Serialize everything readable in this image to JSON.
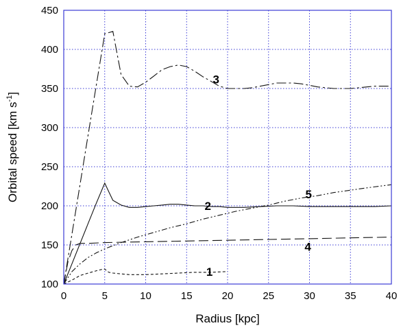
{
  "chart_data": {
    "type": "line",
    "xlabel": "Radius [kpc]",
    "ylabel": "Orbital speed [km s-1]",
    "ylabel_main": "Orbital speed [km s",
    "ylabel_sup": "-1",
    "ylabel_close": "]",
    "xlim": [
      0,
      40
    ],
    "ylim": [
      100,
      450
    ],
    "x_ticks": [
      0,
      5,
      10,
      15,
      20,
      25,
      30,
      35,
      40
    ],
    "y_ticks": [
      100,
      150,
      200,
      250,
      300,
      350,
      400,
      450
    ],
    "grid": true,
    "grid_color": "#3b3bd6",
    "frame_color": "#3b3bd6",
    "series": [
      {
        "label": "1",
        "dash": "short-dash",
        "points": [
          [
            0,
            100
          ],
          [
            1,
            105
          ],
          [
            2,
            111
          ],
          [
            3,
            114
          ],
          [
            4,
            117
          ],
          [
            4.8,
            119
          ],
          [
            5,
            119
          ],
          [
            5.5,
            115
          ],
          [
            6,
            114
          ],
          [
            7,
            113
          ],
          [
            8,
            112
          ],
          [
            9,
            112
          ],
          [
            10,
            112
          ],
          [
            12,
            113
          ],
          [
            14,
            114
          ],
          [
            16,
            115
          ],
          [
            18,
            115
          ],
          [
            20,
            116
          ]
        ],
        "label_at": [
          17.4,
          116
        ]
      },
      {
        "label": "2",
        "dash": "solid",
        "points": [
          [
            0,
            100
          ],
          [
            1,
            126
          ],
          [
            2,
            152
          ],
          [
            3,
            178
          ],
          [
            4,
            204
          ],
          [
            5,
            229
          ],
          [
            5.5,
            218
          ],
          [
            6,
            207
          ],
          [
            7,
            201
          ],
          [
            8,
            198
          ],
          [
            9,
            198
          ],
          [
            10,
            199
          ],
          [
            11,
            200
          ],
          [
            12,
            201
          ],
          [
            13,
            202
          ],
          [
            14,
            202
          ],
          [
            15,
            201
          ],
          [
            16,
            200
          ],
          [
            17,
            200
          ],
          [
            18,
            199
          ],
          [
            19,
            199
          ],
          [
            20,
            198
          ],
          [
            22,
            198
          ],
          [
            24,
            199
          ],
          [
            26,
            200
          ],
          [
            28,
            200
          ],
          [
            30,
            199
          ],
          [
            32,
            199
          ],
          [
            34,
            199
          ],
          [
            36,
            199
          ],
          [
            38,
            199
          ],
          [
            40,
            200
          ]
        ],
        "label_at": [
          17.2,
          200
        ]
      },
      {
        "label": "3",
        "dash": "long-dash-dot",
        "points": [
          [
            0,
            100
          ],
          [
            1,
            164
          ],
          [
            2,
            228
          ],
          [
            3,
            292
          ],
          [
            4,
            356
          ],
          [
            5,
            420
          ],
          [
            6,
            423
          ],
          [
            6.5,
            395
          ],
          [
            7,
            368
          ],
          [
            8,
            353
          ],
          [
            9,
            352
          ],
          [
            10,
            358
          ],
          [
            11,
            366
          ],
          [
            12,
            374
          ],
          [
            13,
            378
          ],
          [
            14,
            380
          ],
          [
            15,
            378
          ],
          [
            16,
            372
          ],
          [
            17,
            365
          ],
          [
            18,
            359
          ],
          [
            19,
            353
          ],
          [
            20,
            350
          ],
          [
            21,
            350
          ],
          [
            22,
            350
          ],
          [
            23,
            351
          ],
          [
            24,
            353
          ],
          [
            25,
            355
          ],
          [
            26,
            357
          ],
          [
            27,
            357
          ],
          [
            28,
            357
          ],
          [
            29,
            356
          ],
          [
            30,
            354
          ],
          [
            31,
            352
          ],
          [
            32,
            351
          ],
          [
            33,
            350
          ],
          [
            34,
            350
          ],
          [
            35,
            350
          ],
          [
            36,
            351
          ],
          [
            37,
            352
          ],
          [
            38,
            353
          ],
          [
            39,
            353
          ],
          [
            40,
            353
          ]
        ],
        "label_at": [
          18.2,
          362
        ]
      },
      {
        "label": "4",
        "dash": "long-dash",
        "points": [
          [
            0,
            100
          ],
          [
            0.5,
            128
          ],
          [
            1,
            143
          ],
          [
            1.5,
            150
          ],
          [
            2,
            152
          ],
          [
            3,
            152
          ],
          [
            5,
            153
          ],
          [
            10,
            154
          ],
          [
            15,
            155
          ],
          [
            20,
            156
          ],
          [
            25,
            157
          ],
          [
            30,
            158
          ],
          [
            35,
            159
          ],
          [
            40,
            160
          ]
        ],
        "label_at": [
          29.4,
          148
        ]
      },
      {
        "label": "5",
        "dash": "dash-dot-dot",
        "points": [
          [
            0,
            100
          ],
          [
            1,
            116
          ],
          [
            2,
            126
          ],
          [
            3,
            134
          ],
          [
            4,
            140
          ],
          [
            5,
            145
          ],
          [
            7,
            153
          ],
          [
            9,
            160
          ],
          [
            11,
            166
          ],
          [
            13,
            172
          ],
          [
            15,
            177
          ],
          [
            17,
            183
          ],
          [
            19,
            188
          ],
          [
            21,
            193
          ],
          [
            23,
            197
          ],
          [
            25,
            201
          ],
          [
            27,
            206
          ],
          [
            29,
            210
          ],
          [
            31,
            213
          ],
          [
            33,
            217
          ],
          [
            35,
            220
          ],
          [
            37,
            223
          ],
          [
            40,
            227
          ]
        ],
        "label_at": [
          29.5,
          215
        ]
      }
    ]
  }
}
